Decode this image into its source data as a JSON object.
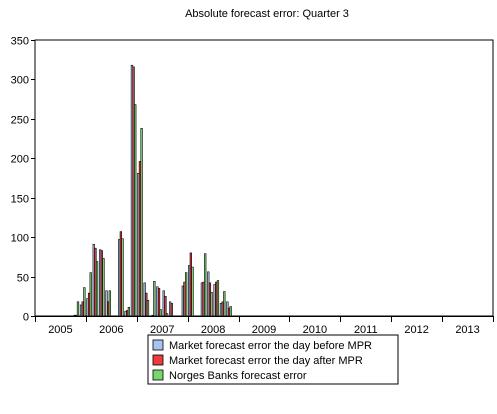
{
  "chart_data": {
    "type": "bar",
    "title": "Absolute forecast error:  Quarter 3",
    "xlabel": "",
    "ylabel": "",
    "ylim": [
      0,
      350
    ],
    "yticks": [
      0,
      50,
      100,
      150,
      200,
      250,
      300,
      350
    ],
    "grid": false,
    "legend_position": "bottom-center",
    "x_tick_labels": [
      "2005",
      "2006",
      "2007",
      "2008",
      "2009",
      "2010",
      "2011",
      "2012",
      "2013"
    ],
    "periods_per_year": 8,
    "first_year": 2005,
    "colors": [
      "#a6c4ef",
      "#ee3b3b",
      "#77d66f"
    ],
    "series": [
      {
        "name": "Market forecast error the day before MPR",
        "values": [
          0,
          0,
          0,
          0,
          0,
          0,
          1,
          14,
          22,
          91,
          84,
          32,
          0,
          97,
          6,
          318,
          181,
          42,
          0,
          37,
          32,
          18,
          0,
          38,
          64,
          0,
          42,
          56,
          40,
          16,
          18,
          0,
          0,
          0,
          0,
          0,
          0,
          0,
          0,
          0
        ]
      },
      {
        "name": "Market forecast error the day after MPR",
        "values": [
          0,
          0,
          0,
          0,
          0,
          0,
          1,
          18,
          29,
          86,
          83,
          18,
          0,
          107,
          7,
          316,
          196,
          29,
          1,
          35,
          25,
          16,
          0,
          43,
          80,
          0,
          43,
          42,
          43,
          18,
          10,
          0,
          0,
          0,
          0,
          0,
          0,
          0,
          0,
          0
        ]
      },
      {
        "name": "Norges Banks forecast error",
        "values": [
          0,
          0,
          0,
          0,
          0,
          0,
          18,
          36,
          55,
          69,
          73,
          32,
          0,
          98,
          11,
          268,
          238,
          20,
          44,
          8,
          3,
          0,
          0,
          55,
          62,
          0,
          79,
          30,
          45,
          31,
          12,
          0,
          0,
          0,
          0,
          0,
          0,
          0,
          0,
          0
        ]
      }
    ]
  }
}
